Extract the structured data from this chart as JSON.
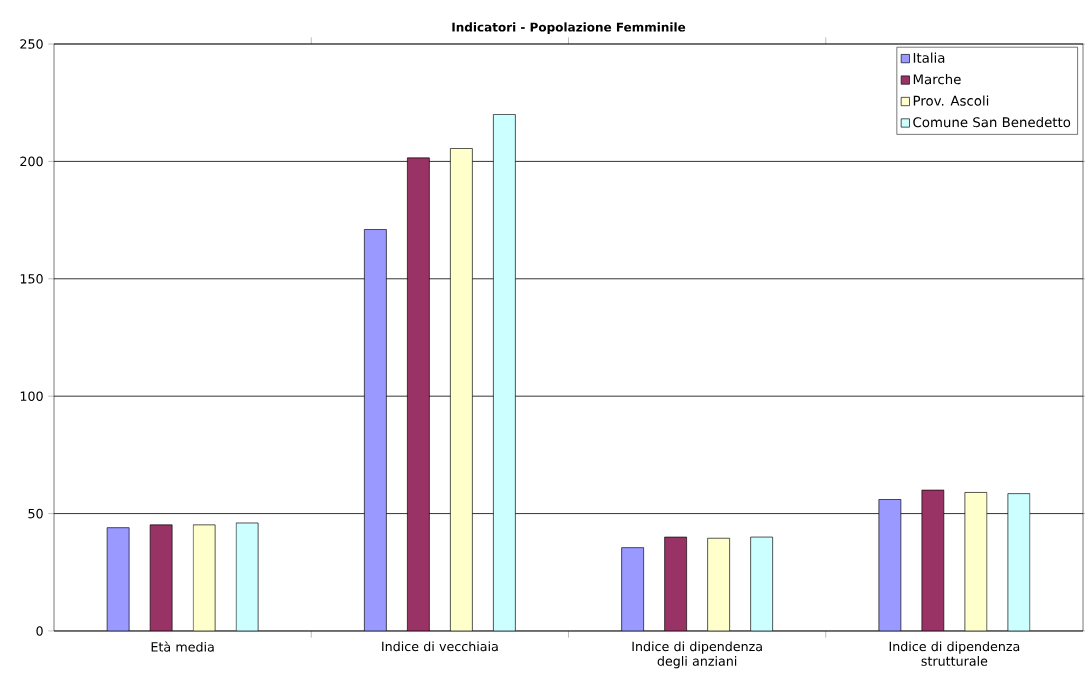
{
  "chart_data": {
    "type": "bar",
    "title": "Indicatori - Popolazione Femminile",
    "categories": [
      "Età media",
      "Indice di vecchiaia",
      "Indice di dipendenza degli anziani",
      "Indice di dipendenza strutturale"
    ],
    "series": [
      {
        "name": "Italia",
        "color": "#9999ff",
        "values": [
          44,
          171,
          35.5,
          56
        ]
      },
      {
        "name": "Marche",
        "color": "#993366",
        "values": [
          45.2,
          201.5,
          40,
          60
        ]
      },
      {
        "name": "Prov. Ascoli",
        "color": "#ffffcc",
        "values": [
          45.2,
          205.5,
          39.5,
          59
        ]
      },
      {
        "name": "Comune San Benedetto",
        "color": "#ccffff",
        "values": [
          46,
          220,
          40,
          58.5
        ]
      }
    ],
    "ylim": [
      0,
      250
    ],
    "yticks": [
      0,
      50,
      100,
      150,
      200,
      250
    ],
    "grid": "y",
    "legend": "top right"
  }
}
